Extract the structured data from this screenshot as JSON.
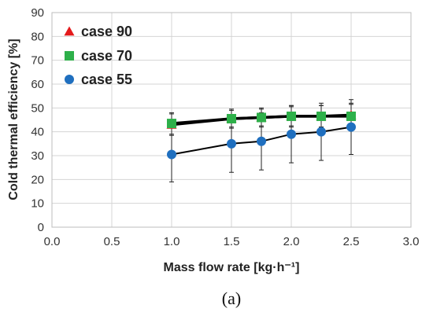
{
  "chart_data": {
    "type": "scatter",
    "xlabel": "Mass flow rate [kg·h⁻¹]",
    "ylabel": "Cold thermal efficiency [%]",
    "xlim": [
      0.0,
      3.0
    ],
    "ylim": [
      0,
      90
    ],
    "xticks": [
      "0.0",
      "0.5",
      "1.0",
      "1.5",
      "2.0",
      "2.5",
      "3.0"
    ],
    "yticks": [
      "0",
      "10",
      "20",
      "30",
      "40",
      "50",
      "60",
      "70",
      "80",
      "90"
    ],
    "grid": true,
    "legend_position": "top-left",
    "series": [
      {
        "name": "case 90",
        "marker": "triangle",
        "color": "#e41a1c",
        "x": [
          1.0,
          1.5,
          1.75,
          2.0,
          2.25,
          2.5
        ],
        "y": [
          43.0,
          45.5,
          46.0,
          46.5,
          46.5,
          47.0
        ],
        "err": [
          4.5,
          3.5,
          3.5,
          4.0,
          4.5,
          5.0
        ]
      },
      {
        "name": "case 70",
        "marker": "square",
        "color": "#2eb04a",
        "x": [
          1.0,
          1.5,
          1.75,
          2.0,
          2.25,
          2.5
        ],
        "y": [
          43.5,
          45.5,
          46.0,
          46.5,
          46.5,
          46.5
        ],
        "err": [
          4.5,
          4.0,
          4.0,
          4.5,
          4.5,
          5.0
        ]
      },
      {
        "name": "case 55",
        "marker": "circle",
        "color": "#1f6fbf",
        "x": [
          1.0,
          1.5,
          1.75,
          2.0,
          2.25,
          2.5
        ],
        "y": [
          30.5,
          35.0,
          36.0,
          39.0,
          40.0,
          42.0
        ],
        "err": [
          11.5,
          12.0,
          12.0,
          12.0,
          12.0,
          11.5
        ]
      }
    ]
  },
  "caption": "(a)"
}
